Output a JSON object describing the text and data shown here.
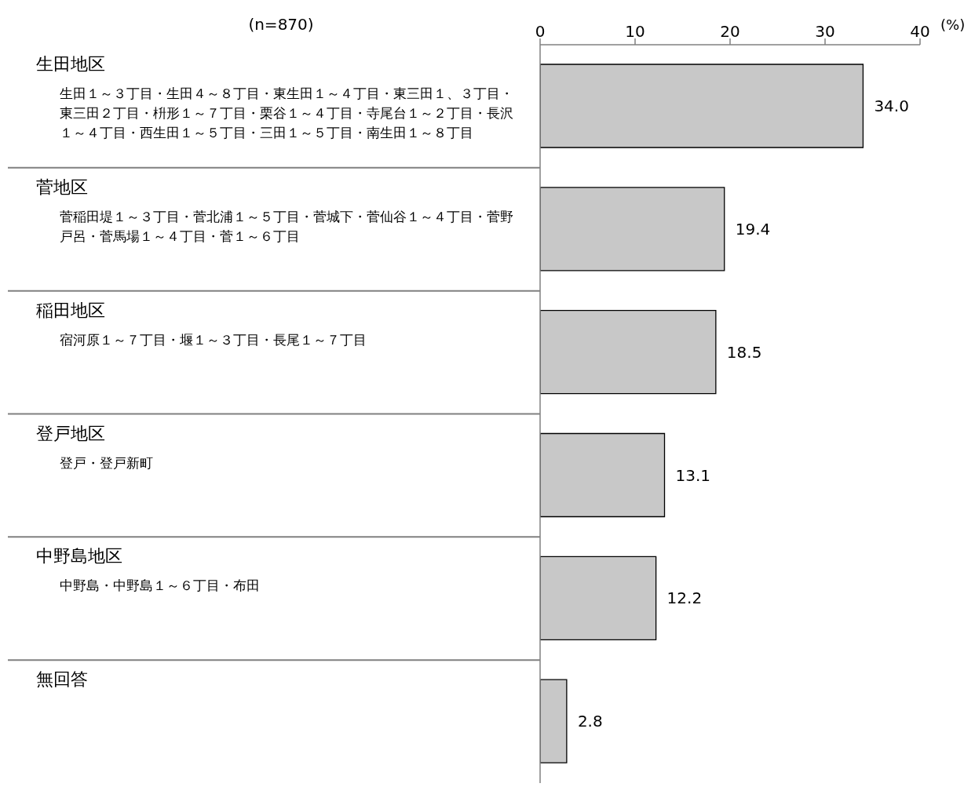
{
  "chart_data": {
    "type": "bar",
    "orientation": "horizontal",
    "categories": [
      "生田地区",
      "菅地区",
      "稲田地区",
      "登戸地区",
      "中野島地区",
      "無回答"
    ],
    "values": [
      34.0,
      19.4,
      18.5,
      13.1,
      12.2,
      2.8
    ],
    "value_labels": [
      "34.0",
      "19.4",
      "18.5",
      "13.1",
      "12.2",
      "2.8"
    ],
    "color": "#c8c8c8",
    "x2lim": [
      0,
      40
    ],
    "x2ticks": [
      0,
      10,
      20,
      30,
      40
    ],
    "x2label": "(%)",
    "annotations": [
      "(n=870)",
      "生田１～３丁目・生田４～８丁目・東生田１～４丁目・東三田１、３丁目・東三田２丁目・枡形１～７丁目・栗谷１～４丁目・寺尾台１～２丁目・長沢１～４丁目・西生田１～５丁目・三田１～５丁目・南生田１～８丁目",
      "菅稲田堤１～３丁目・菅北浦１～５丁目・菅城下・菅仙谷１～４丁目・菅野戸呂・菅馬場１～４丁目・菅１～６丁目",
      "宿河原１～７丁目・堰１～３丁目・長尾１～７丁目",
      "登戸・登戸新町",
      "中野島・中野島１～６丁目・布田"
    ]
  }
}
